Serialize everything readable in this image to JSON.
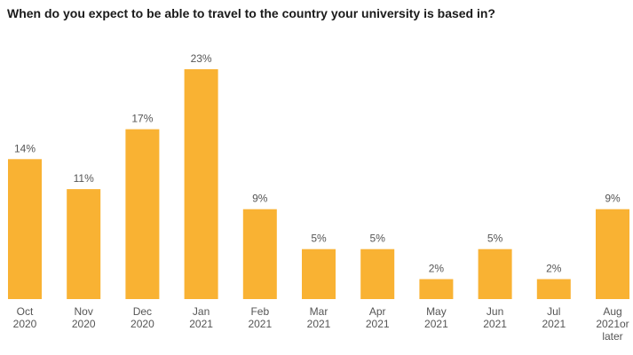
{
  "chart_data": {
    "type": "bar",
    "title": "When do you expect to be able to travel to the country your university is based in?",
    "categories": [
      [
        "Oct",
        "2020"
      ],
      [
        "Nov",
        "2020"
      ],
      [
        "Dec",
        "2020"
      ],
      [
        "Jan",
        "2021"
      ],
      [
        "Feb",
        "2021"
      ],
      [
        "Mar",
        "2021"
      ],
      [
        "Apr",
        "2021"
      ],
      [
        "May",
        "2021"
      ],
      [
        "Jun",
        "2021"
      ],
      [
        "Jul",
        "2021"
      ],
      [
        "Aug",
        "2021or",
        "later"
      ]
    ],
    "values": [
      14,
      11,
      17,
      23,
      9,
      5,
      5,
      2,
      5,
      2,
      9
    ],
    "value_labels": [
      "14%",
      "11%",
      "17%",
      "23%",
      "9%",
      "5%",
      "5%",
      "2%",
      "5%",
      "2%",
      "9%"
    ],
    "unit": "%",
    "ylim": [
      0,
      23
    ],
    "grid": false,
    "bar_color": "#F9B233"
  }
}
